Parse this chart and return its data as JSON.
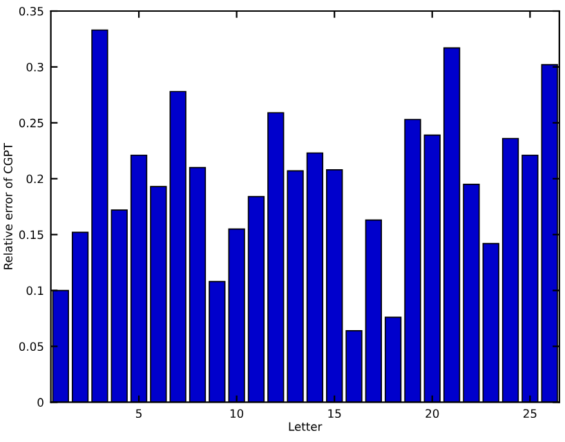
{
  "chart_data": {
    "type": "bar",
    "xlabel": "Letter",
    "ylabel": "Relative error of CGPT",
    "x": [
      1,
      2,
      3,
      4,
      5,
      6,
      7,
      8,
      9,
      10,
      11,
      12,
      13,
      14,
      15,
      16,
      17,
      18,
      19,
      20,
      21,
      22,
      23,
      24,
      25,
      26
    ],
    "values": [
      0.1,
      0.152,
      0.333,
      0.172,
      0.221,
      0.193,
      0.278,
      0.21,
      0.108,
      0.155,
      0.184,
      0.259,
      0.207,
      0.223,
      0.208,
      0.064,
      0.163,
      0.076,
      0.253,
      0.239,
      0.317,
      0.195,
      0.142,
      0.236,
      0.221,
      0.302
    ],
    "color": "#0000cc",
    "xlim": [
      0.5,
      26.5
    ],
    "xticks": [
      5,
      10,
      15,
      20,
      25
    ],
    "ylim": [
      0,
      0.35
    ],
    "yticks": [
      0,
      0.05,
      0.1,
      0.15,
      0.2,
      0.25,
      0.3,
      0.35
    ],
    "grid": false,
    "legend": false
  }
}
